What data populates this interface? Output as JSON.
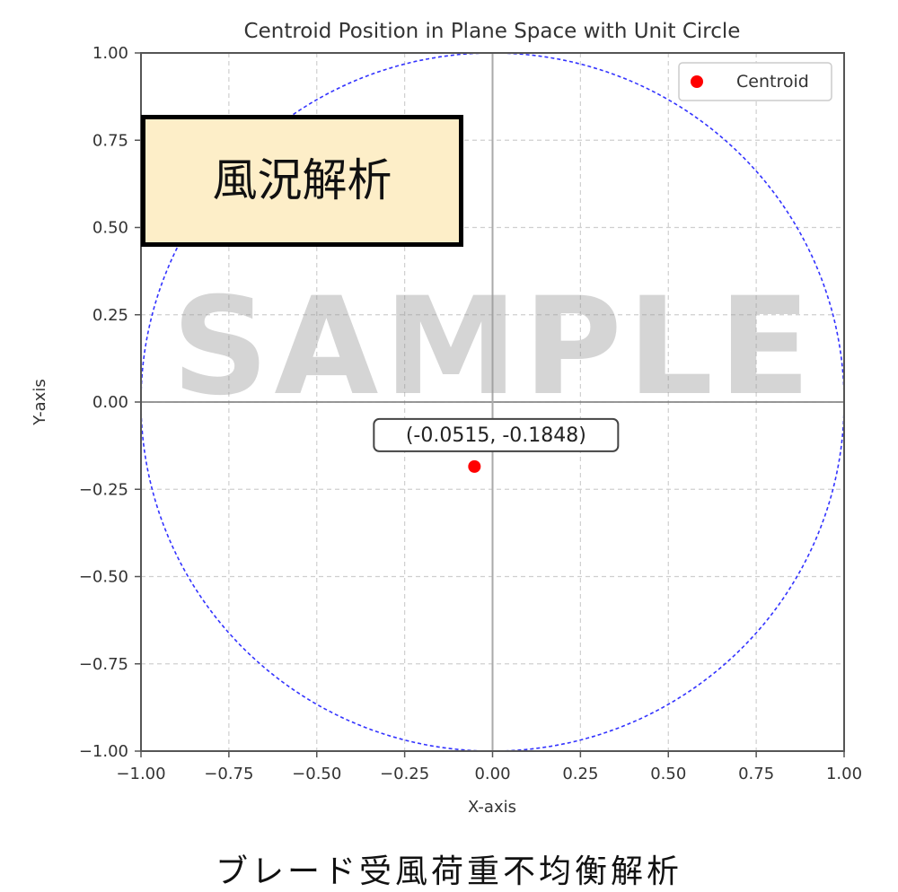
{
  "chart_data": {
    "type": "scatter",
    "title": "Centroid Position in Plane Space with Unit Circle",
    "xlabel": "X-axis",
    "ylabel": "Y-axis",
    "xlim": [
      -1.0,
      1.0
    ],
    "ylim": [
      -1.0,
      1.0
    ],
    "xticks": [
      "−1.00",
      "−0.75",
      "−0.50",
      "−0.25",
      "0.00",
      "0.25",
      "0.50",
      "0.75",
      "1.00"
    ],
    "yticks": [
      "1.00",
      "0.75",
      "0.50",
      "0.25",
      "0.00",
      "−0.25",
      "−0.50",
      "−0.75",
      "−1.00"
    ],
    "grid": true,
    "legend_position": "top-right",
    "series": [
      {
        "name": "Centroid",
        "color": "#ff0000",
        "points": [
          {
            "x": -0.0515,
            "y": -0.1848
          }
        ]
      }
    ],
    "unit_circle": {
      "radius": 1.0,
      "color": "#3333ff",
      "style": "dashed"
    },
    "annotation": {
      "text": "(-0.0515, -0.1848)",
      "x": -0.0515,
      "y": -0.1848
    }
  },
  "overlay_label": "風況解析",
  "watermark": "SAMPLE",
  "caption": "ブレード受風荷重不均衡解析"
}
